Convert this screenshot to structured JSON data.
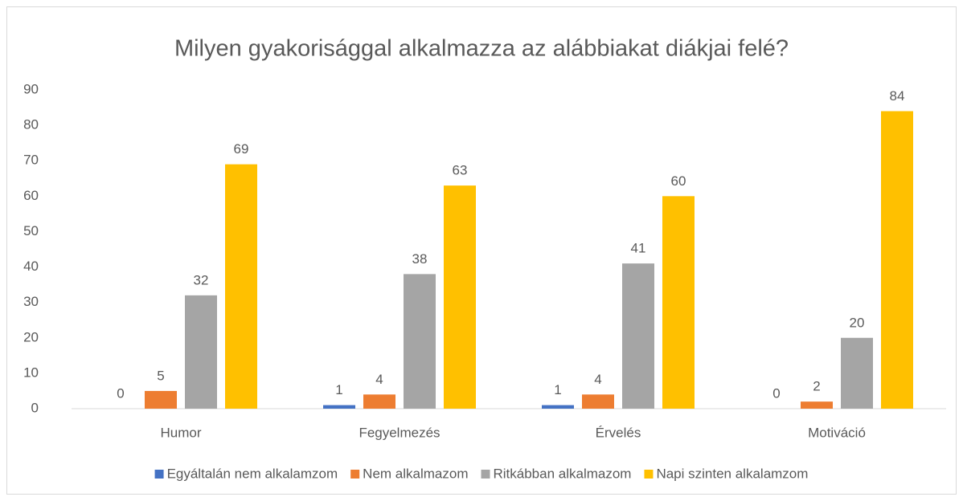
{
  "chart_data": {
    "type": "bar",
    "title": "Milyen gyakorisággal alkalmazza az alábbiakat diákjai felé?",
    "categories": [
      "Humor",
      "Fegyelmezés",
      "Érvelés",
      "Motiváció"
    ],
    "series": [
      {
        "name": "Egyáltalán nem alkalamzom",
        "color": "#4472c4",
        "values": [
          0,
          1,
          1,
          0
        ]
      },
      {
        "name": "Nem alkalmazom",
        "color": "#ed7d31",
        "values": [
          5,
          4,
          4,
          2
        ]
      },
      {
        "name": "Ritkábban alkalmazom",
        "color": "#a5a5a5",
        "values": [
          32,
          38,
          41,
          20
        ]
      },
      {
        "name": "Napi szinten alkalamzom",
        "color": "#ffc000",
        "values": [
          69,
          63,
          60,
          84
        ]
      }
    ],
    "ylim": [
      0,
      90
    ],
    "yticks": [
      0,
      10,
      20,
      30,
      40,
      50,
      60,
      70,
      80,
      90
    ],
    "grid": false,
    "legend": "bottom"
  }
}
